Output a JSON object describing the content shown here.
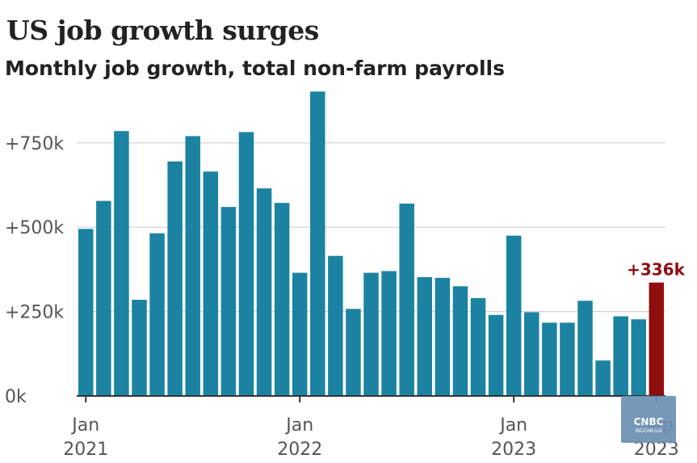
{
  "chart_data": {
    "type": "bar",
    "title": "US job growth surges",
    "subtitle": "Monthly job growth, total non-farm payrolls",
    "ylim": [
      0,
      900
    ],
    "y_ticks": [
      {
        "value": 0,
        "label": "0k"
      },
      {
        "value": 250,
        "label": "+250k"
      },
      {
        "value": 500,
        "label": "+500k"
      },
      {
        "value": 750,
        "label": "+750k"
      }
    ],
    "x_ticks": [
      {
        "index": 0,
        "line1": "Jan",
        "line2": "2021"
      },
      {
        "index": 12,
        "line1": "Jan",
        "line2": "2022"
      },
      {
        "index": 24,
        "line1": "Jan",
        "line2": "2023"
      },
      {
        "index": 32,
        "line1": "Sep",
        "line2": "2023"
      }
    ],
    "grid": true,
    "categories": [
      "Jan 2021",
      "Feb 2021",
      "Mar 2021",
      "Apr 2021",
      "May 2021",
      "Jun 2021",
      "Jul 2021",
      "Aug 2021",
      "Sep 2021",
      "Oct 2021",
      "Nov 2021",
      "Dec 2021",
      "Jan 2022",
      "Feb 2022",
      "Mar 2022",
      "Apr 2022",
      "May 2022",
      "Jun 2022",
      "Jul 2022",
      "Aug 2022",
      "Sep 2022",
      "Oct 2022",
      "Nov 2022",
      "Dec 2022",
      "Jan 2023",
      "Feb 2023",
      "Mar 2023",
      "Apr 2023",
      "May 2023",
      "Jun 2023",
      "Jul 2023",
      "Aug 2023",
      "Sep 2023"
    ],
    "values": [
      495,
      578,
      785,
      285,
      482,
      695,
      770,
      665,
      560,
      782,
      615,
      572,
      365,
      902,
      415,
      258,
      365,
      370,
      570,
      352,
      350,
      325,
      290,
      240,
      475,
      248,
      217,
      217,
      282,
      105,
      236,
      227,
      336
    ],
    "highlight_index": 32,
    "annotation": "+336k",
    "colors": {
      "bar": "#1b83a1",
      "highlight": "#8f0f0f",
      "annotation": "#8f0f0f",
      "grid": "#d0d0d0",
      "text": "#555555",
      "axis": "#333333"
    }
  },
  "watermark": {
    "text": "CNBC",
    "subtext": "INDONESIA"
  }
}
